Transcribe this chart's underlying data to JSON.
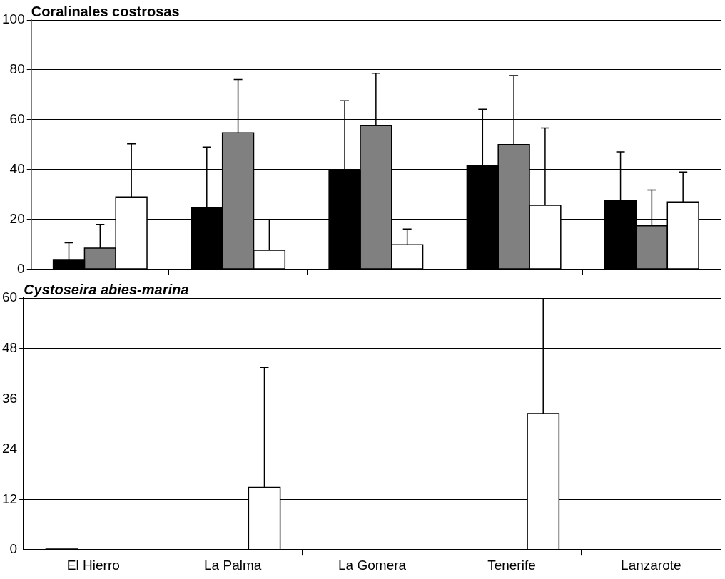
{
  "chart_data": [
    {
      "type": "bar",
      "title": "Coralinales costrosas",
      "categories": [
        null,
        null,
        null,
        null,
        null
      ],
      "series": [
        {
          "color": "#000000",
          "values": [
            3.9,
            24.8,
            39.7,
            41.4,
            27.6
          ],
          "errors": [
            [
              3.9,
              10.6
            ],
            [
              24.8,
              49
            ],
            [
              39.7,
              67.6
            ],
            [
              41.4,
              64.2
            ],
            [
              27.6,
              47.1
            ]
          ]
        },
        {
          "color": "#808080",
          "values": [
            8.5,
            54.7,
            57.6,
            50,
            17.4
          ],
          "errors": [
            [
              8.5,
              18
            ],
            [
              54.7,
              76.1
            ],
            [
              57.6,
              78.6
            ],
            [
              50,
              77.7
            ],
            [
              17.4,
              31.8
            ]
          ]
        },
        {
          "color": "#ffffff",
          "values": [
            29,
            7.6,
            9.8,
            25.6,
            27
          ],
          "errors": [
            [
              29,
              50.3
            ],
            [
              7.6,
              20
            ],
            [
              9.8,
              16.1
            ],
            [
              25.6,
              56.7
            ],
            [
              27,
              39
            ]
          ]
        }
      ],
      "ylim": [
        0,
        100
      ],
      "yticks": [
        0,
        20,
        40,
        60,
        80,
        100
      ],
      "grid": "y",
      "tick_labels": "y"
    },
    {
      "type": "bar",
      "title": "Cystoseira abies-marina",
      "categories": [
        "El Hierro",
        "La Palma",
        "La Gomera",
        "Tenerife",
        "Lanzarote"
      ],
      "series": [
        {
          "color": "#000000",
          "values": [
            0.2,
            0,
            0,
            0,
            0
          ]
        },
        {
          "color": "#808080",
          "values": [
            0,
            0,
            0,
            0,
            0
          ]
        },
        {
          "color": "#ffffff",
          "values": [
            0,
            14.9,
            0,
            32.5,
            0
          ],
          "errors": [
            null,
            [
              14.9,
              43.5
            ],
            null,
            [
              32.5,
              59.8
            ],
            null
          ]
        }
      ],
      "ylim": [
        0,
        60
      ],
      "yticks": [
        0,
        12,
        24,
        36,
        48,
        60
      ],
      "grid": "y"
    }
  ]
}
